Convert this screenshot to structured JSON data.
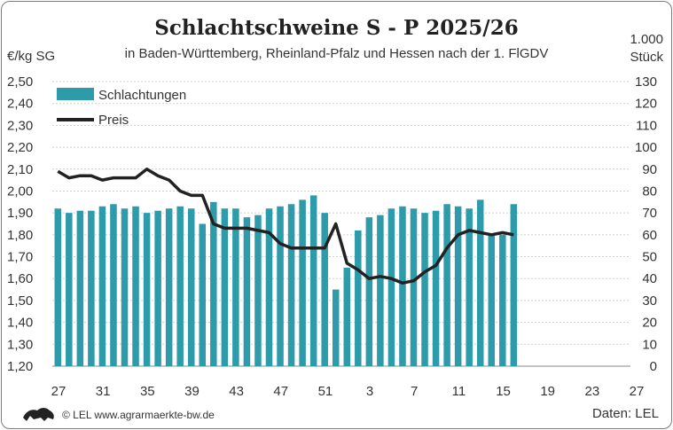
{
  "header": {
    "title": "Schlachtschweine S - P 2025/26",
    "subtitle": "in Baden-Württemberg, Rheinland-Pfalz und Hessen nach der 1. FlGDV",
    "left_unit": "€/kg SG",
    "right_unit_line1": "1.000",
    "right_unit_line2": "Stück"
  },
  "footer": {
    "source_left": "© LEL www.agrarmaerkte-bw.de",
    "source_right": "Daten: LEL"
  },
  "colors": {
    "bar": "#2e9bab",
    "line": "#222222",
    "grid": "#cfcfcf"
  },
  "chart_data": {
    "type": "bar",
    "x_tick_labels": [
      "27",
      "31",
      "35",
      "39",
      "43",
      "47",
      "51",
      "3",
      "7",
      "11",
      "15",
      "19",
      "23",
      "27"
    ],
    "weeks": [
      "27",
      "28",
      "29",
      "30",
      "31",
      "32",
      "33",
      "34",
      "35",
      "36",
      "37",
      "38",
      "39",
      "40",
      "41",
      "42",
      "43",
      "44",
      "45",
      "46",
      "47",
      "48",
      "49",
      "50",
      "51",
      "52",
      "1",
      "2",
      "3",
      "4",
      "5",
      "6",
      "7",
      "8",
      "9",
      "10",
      "11",
      "12",
      "13",
      "14",
      "15",
      "16",
      "17",
      "18",
      "19",
      "20",
      "21",
      "22",
      "23",
      "24",
      "25",
      "26",
      "27"
    ],
    "y_left": {
      "min": 1.2,
      "max": 2.5,
      "step": 0.1,
      "tick_labels": [
        "1,20",
        "1,30",
        "1,40",
        "1,50",
        "1,60",
        "1,70",
        "1,80",
        "1,90",
        "2,00",
        "2,10",
        "2,20",
        "2,30",
        "2,40",
        "2,50"
      ]
    },
    "y_right": {
      "min": 0,
      "max": 130,
      "step": 10,
      "tick_labels": [
        "0",
        "10",
        "20",
        "30",
        "40",
        "50",
        "60",
        "70",
        "80",
        "90",
        "100",
        "110",
        "120",
        "130"
      ]
    },
    "grid": true,
    "legend_position": "top-left",
    "series": [
      {
        "name": "Schlachtungen",
        "type": "bar",
        "axis": "right",
        "values": [
          72,
          70,
          71,
          71,
          73,
          74,
          72,
          73,
          70,
          71,
          72,
          73,
          72,
          65,
          75,
          72,
          72,
          68,
          69,
          72,
          73,
          74,
          76,
          78,
          70,
          35,
          45,
          62,
          68,
          69,
          72,
          73,
          72,
          70,
          71,
          74,
          73,
          72,
          76,
          60,
          60,
          74
        ]
      },
      {
        "name": "Preis",
        "type": "line",
        "axis": "left",
        "values": [
          2.09,
          2.06,
          2.07,
          2.07,
          2.05,
          2.06,
          2.06,
          2.06,
          2.1,
          2.07,
          2.05,
          2.0,
          1.98,
          1.98,
          1.85,
          1.83,
          1.83,
          1.83,
          1.82,
          1.81,
          1.76,
          1.74,
          1.74,
          1.74,
          1.74,
          1.85,
          1.67,
          1.64,
          1.6,
          1.61,
          1.6,
          1.58,
          1.59,
          1.63,
          1.66,
          1.74,
          1.8,
          1.82,
          1.81,
          1.8,
          1.81,
          1.8
        ]
      }
    ]
  }
}
